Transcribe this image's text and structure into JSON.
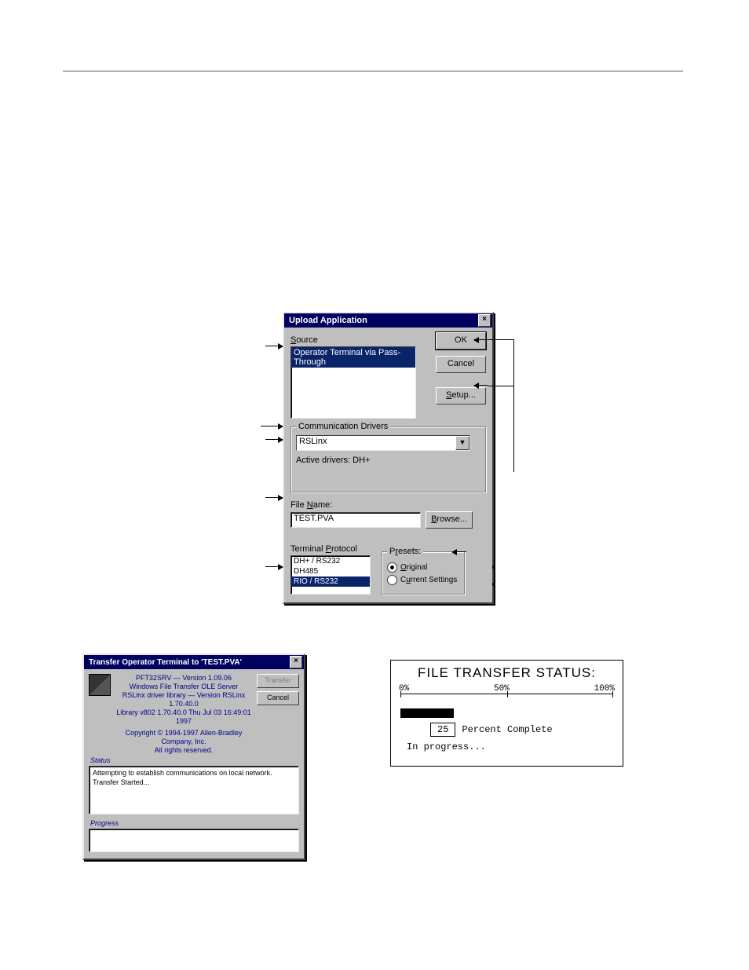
{
  "upload": {
    "title": "Upload Application",
    "source_label": "Source",
    "source_items": [
      "Operator Terminal via Pass-Through"
    ],
    "source_selected": 0,
    "buttons": {
      "ok": "OK",
      "cancel": "Cancel",
      "setup": "Setup..."
    },
    "comm_group_label": "Communication Drivers",
    "comm_combo_value": "RSLinx",
    "active_drivers_label": "Active drivers: DH+",
    "file_name_label": "File Name:",
    "file_name_value": "TEST.PVA",
    "browse": "Browse...",
    "terminal_protocol_label": "Terminal Protocol",
    "protocol_items": [
      "DH+ / RS232",
      "DH485",
      "RIO / RS232"
    ],
    "protocol_selected": 2,
    "presets_label": "Presets:",
    "presets": {
      "original": "Original",
      "current": "Current Settings"
    },
    "presets_selected": "original"
  },
  "transfer": {
    "title": "Transfer Operator Terminal to 'TEST.PVA'",
    "lines": [
      "PFT32SRV — Version 1.09.06",
      "Windows File Transfer OLE Server",
      "RSLinx driver library — Version RSLinx 1.70.40.0",
      "Library     v802 1.70.40.0 Thu Jul 03 16:49:01 1997",
      "",
      "Copyright © 1994-1997 Allen-Bradley Company, Inc.",
      "All rights reserved."
    ],
    "buttons": {
      "transfer": "Transfer",
      "cancel": "Cancel"
    },
    "status_label": "Status",
    "status_lines": [
      "Attempting to establish communications on local network.",
      "Transfer Started..."
    ],
    "progress_label": "Progress"
  },
  "file_transfer": {
    "title": "FILE TRANSFER STATUS:",
    "scale": {
      "min": "0%",
      "mid": "50%",
      "max": "100%"
    },
    "percent": 25,
    "percent_label": "Percent Complete",
    "message": "In progress..."
  },
  "colors": {
    "dialog_bg": "#bfbfbf",
    "titlebar_bg": "#000060",
    "highlight_bg": "#0a246a",
    "info_text": "#00008b"
  }
}
